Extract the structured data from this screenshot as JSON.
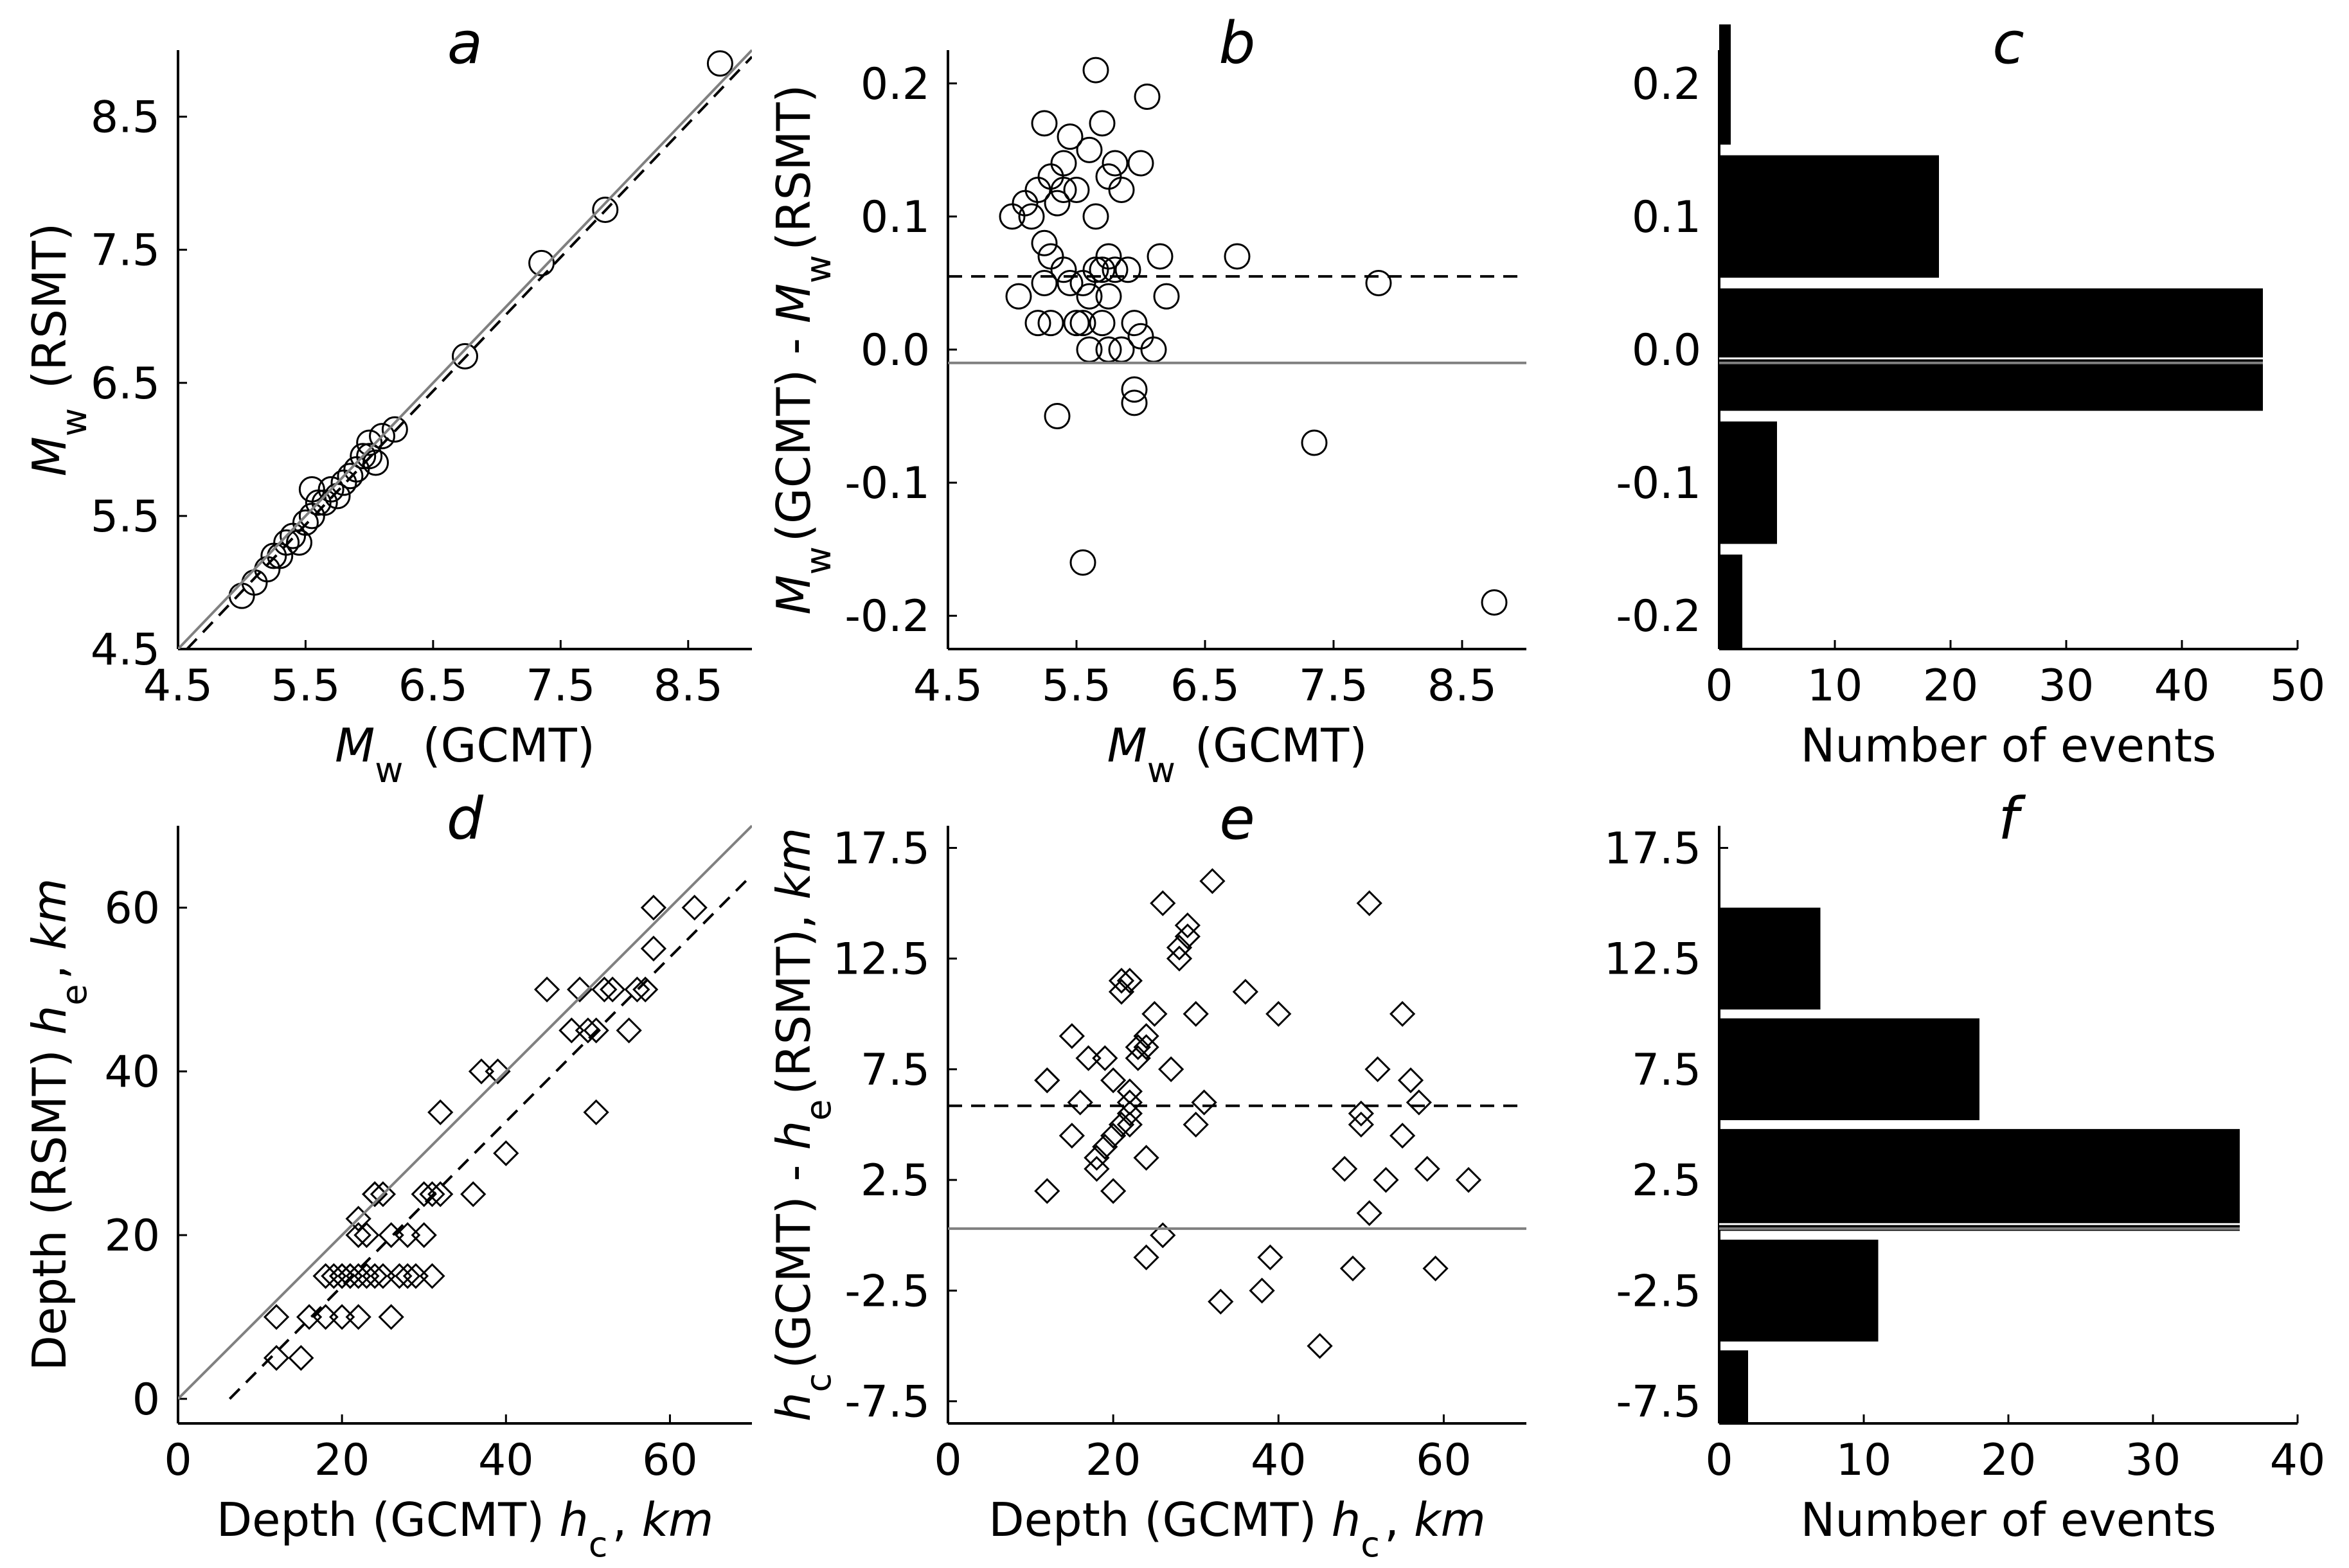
{
  "chart_data": [
    {
      "type": "scatter",
      "title": "a",
      "xlabel": "M_w (GCMT)",
      "ylabel": "M_w (RSMT)",
      "xlim": [
        4.5,
        9.0
      ],
      "ylim": [
        4.5,
        9.0
      ],
      "xticks": [
        "4.5",
        "5.5",
        "6.5",
        "7.5",
        "8.5"
      ],
      "yticks": [
        "4.5",
        "5.5",
        "6.5",
        "7.5",
        "8.5"
      ],
      "marker": "circle",
      "x": [
        5.0,
        5.1,
        5.2,
        5.25,
        5.3,
        5.35,
        5.4,
        5.45,
        5.5,
        5.55,
        5.55,
        5.6,
        5.65,
        5.7,
        5.75,
        5.8,
        5.85,
        5.9,
        5.95,
        6.0,
        6.0,
        6.05,
        6.1,
        6.2,
        6.75,
        7.35,
        7.85,
        8.75
      ],
      "y": [
        4.9,
        5.0,
        5.1,
        5.2,
        5.2,
        5.3,
        5.35,
        5.3,
        5.45,
        5.5,
        5.7,
        5.6,
        5.6,
        5.7,
        5.65,
        5.75,
        5.8,
        5.85,
        5.95,
        5.95,
        6.05,
        5.9,
        6.1,
        6.15,
        6.7,
        7.4,
        7.8,
        8.9
      ],
      "lines": [
        {
          "style": "solid",
          "color": "#808080",
          "x": [
            4.5,
            9.0
          ],
          "y": [
            4.5,
            9.0
          ]
        },
        {
          "style": "dashed",
          "color": "#000000",
          "x": [
            4.57,
            9.0
          ],
          "y": [
            4.5,
            8.95
          ]
        }
      ]
    },
    {
      "type": "scatter",
      "title": "b",
      "xlabel": "M_w (GCMT)",
      "ylabel": "M_w(GCMT) - M_w(RSMT)",
      "xlim": [
        4.5,
        9.0
      ],
      "ylim": [
        -0.225,
        0.225
      ],
      "xticks": [
        "4.5",
        "5.5",
        "6.5",
        "7.5",
        "8.5"
      ],
      "yticks": [
        "-0.2",
        "-0.1",
        "0.0",
        "0.1",
        "0.2"
      ],
      "marker": "circle",
      "x": [
        5.0,
        5.05,
        5.1,
        5.15,
        5.2,
        5.2,
        5.25,
        5.25,
        5.3,
        5.3,
        5.35,
        5.35,
        5.4,
        5.4,
        5.45,
        5.45,
        5.5,
        5.5,
        5.55,
        5.55,
        5.6,
        5.6,
        5.6,
        5.65,
        5.65,
        5.7,
        5.7,
        5.7,
        5.75,
        5.75,
        5.8,
        5.8,
        5.85,
        5.85,
        5.9,
        5.95,
        5.95,
        6.0,
        6.0,
        6.05,
        6.1,
        6.15,
        6.2,
        6.75,
        7.35,
        7.85,
        8.75,
        5.3,
        5.4,
        5.55,
        5.65,
        5.75,
        5.95,
        5.75,
        5.25
      ],
      "y": [
        0.1,
        0.04,
        0.11,
        0.1,
        0.12,
        0.02,
        0.17,
        0.05,
        0.13,
        0.07,
        0.11,
        -0.05,
        0.14,
        0.12,
        0.16,
        0.05,
        0.02,
        0.12,
        -0.16,
        0.05,
        0.15,
        0.04,
        0.0,
        0.21,
        0.06,
        0.17,
        0.06,
        0.02,
        0.13,
        0.04,
        0.14,
        0.06,
        0.12,
        0.0,
        0.06,
        -0.04,
        0.02,
        0.14,
        0.01,
        0.19,
        0.0,
        0.07,
        0.04,
        0.07,
        -0.07,
        0.05,
        -0.19,
        0.02,
        0.06,
        0.02,
        0.1,
        0.0,
        -0.03,
        0.07,
        0.08
      ],
      "lines": [
        {
          "style": "dashed",
          "color": "#000000",
          "y": 0.055
        },
        {
          "style": "solid",
          "color": "#808080",
          "y": -0.01
        }
      ]
    },
    {
      "type": "bar",
      "orientation": "horizontal",
      "title": "c",
      "xlabel": "Number of events",
      "ylabel": "",
      "categories": [
        "-0.2",
        "-0.1",
        "0.0",
        "0.1",
        "0.2"
      ],
      "values": [
        2,
        5,
        47,
        19,
        1
      ],
      "xlim": [
        0,
        50
      ],
      "xticks": [
        "0",
        "10",
        "20",
        "30",
        "40",
        "50"
      ],
      "yticks": [
        "-0.2",
        "-0.1",
        "0.0",
        "0.1",
        "0.2"
      ],
      "lines": [
        {
          "style": "solid",
          "color": "#808080",
          "y": -0.01
        }
      ]
    },
    {
      "type": "scatter",
      "title": "d",
      "xlabel": "Depth (GCMT) h_c, km",
      "ylabel": "Depth (RSMT) h_e, km",
      "xlim": [
        0,
        70
      ],
      "ylim": [
        -3,
        70
      ],
      "xticks": [
        "0",
        "20",
        "40",
        "60"
      ],
      "yticks": [
        "0",
        "20",
        "40",
        "60"
      ],
      "marker": "diamond",
      "x": [
        12,
        12,
        15,
        16,
        18,
        18,
        19,
        20,
        20,
        21,
        21,
        22,
        22,
        22,
        23,
        23,
        24,
        24,
        24,
        25,
        25,
        26,
        26,
        27,
        28,
        28,
        29,
        30,
        30,
        31,
        31,
        32,
        32,
        36,
        37,
        39,
        40,
        45,
        48,
        49,
        50,
        51,
        51,
        52,
        53,
        55,
        56,
        57,
        58,
        58,
        63,
        22,
        20
      ],
      "y": [
        10,
        5,
        5,
        10,
        10,
        15,
        15,
        15,
        10,
        15,
        15,
        15,
        10,
        20,
        15,
        20,
        15,
        25,
        25,
        15,
        25,
        20,
        10,
        15,
        15,
        20,
        15,
        25,
        20,
        25,
        15,
        35,
        25,
        25,
        40,
        40,
        30,
        50,
        45,
        50,
        45,
        45,
        35,
        50,
        50,
        45,
        50,
        50,
        55,
        60,
        60,
        22,
        15
      ],
      "lines": [
        {
          "style": "solid",
          "color": "#808080",
          "x": [
            0,
            70
          ],
          "y": [
            0,
            70
          ]
        },
        {
          "style": "dashed",
          "color": "#000000",
          "x": [
            6.3,
            70
          ],
          "y": [
            0,
            64
          ]
        }
      ]
    },
    {
      "type": "scatter",
      "title": "e",
      "xlabel": "Depth (GCMT) h_c, km",
      "ylabel": "h_c(GCMT) - h_e(RSMT), km",
      "xlim": [
        0,
        70
      ],
      "ylim": [
        -8.5,
        18.5
      ],
      "xticks": [
        "0",
        "20",
        "40",
        "60"
      ],
      "yticks": [
        "-7.5",
        "-2.5",
        "2.5",
        "7.5",
        "12.5",
        "17.5"
      ],
      "marker": "diamond",
      "x": [
        12,
        12,
        12,
        15,
        15,
        16,
        17,
        18,
        18,
        19,
        19,
        20,
        20,
        20,
        21,
        21,
        21,
        22,
        22,
        22,
        23,
        23,
        24,
        24,
        24,
        24,
        25,
        26,
        26,
        27,
        28,
        28,
        29,
        29,
        30,
        30,
        31,
        32,
        33,
        36,
        38,
        39,
        40,
        45,
        48,
        49,
        50,
        50,
        51,
        51,
        52,
        53,
        55,
        55,
        56,
        57,
        58,
        59,
        63,
        22,
        22
      ],
      "y": [
        7,
        7,
        2,
        4.5,
        9,
        6,
        8,
        3,
        3.5,
        4,
        8,
        4.5,
        7,
        2,
        5,
        11,
        11.5,
        5.5,
        6.5,
        11.5,
        8,
        8.5,
        8.5,
        9,
        3.5,
        -1,
        10,
        15,
        0,
        7.5,
        12.5,
        13,
        13.5,
        14,
        5,
        10,
        6,
        16,
        -3,
        11,
        -2.5,
        -1,
        10,
        -5,
        3,
        -1.5,
        5,
        5.5,
        1,
        15,
        7.5,
        2.5,
        4.5,
        10,
        7,
        6,
        3,
        -1.5,
        2.5,
        5,
        6
      ],
      "lines": [
        {
          "style": "dashed",
          "color": "#000000",
          "y": 5.85
        },
        {
          "style": "solid",
          "color": "#808080",
          "y": 0.3
        }
      ]
    },
    {
      "type": "bar",
      "orientation": "horizontal",
      "title": "f",
      "xlabel": "Number of events",
      "ylabel": "",
      "categories": [
        "-7.5",
        "-2.5",
        "2.5",
        "7.5",
        "12.5"
      ],
      "values": [
        2,
        11,
        36,
        18,
        7
      ],
      "xlim": [
        0,
        40
      ],
      "xticks": [
        "0",
        "10",
        "20",
        "30",
        "40"
      ],
      "yticks": [
        "-7.5",
        "-2.5",
        "2.5",
        "7.5",
        "12.5",
        "17.5"
      ],
      "lines": [
        {
          "style": "solid",
          "color": "#808080",
          "y": 0.3
        }
      ]
    }
  ]
}
